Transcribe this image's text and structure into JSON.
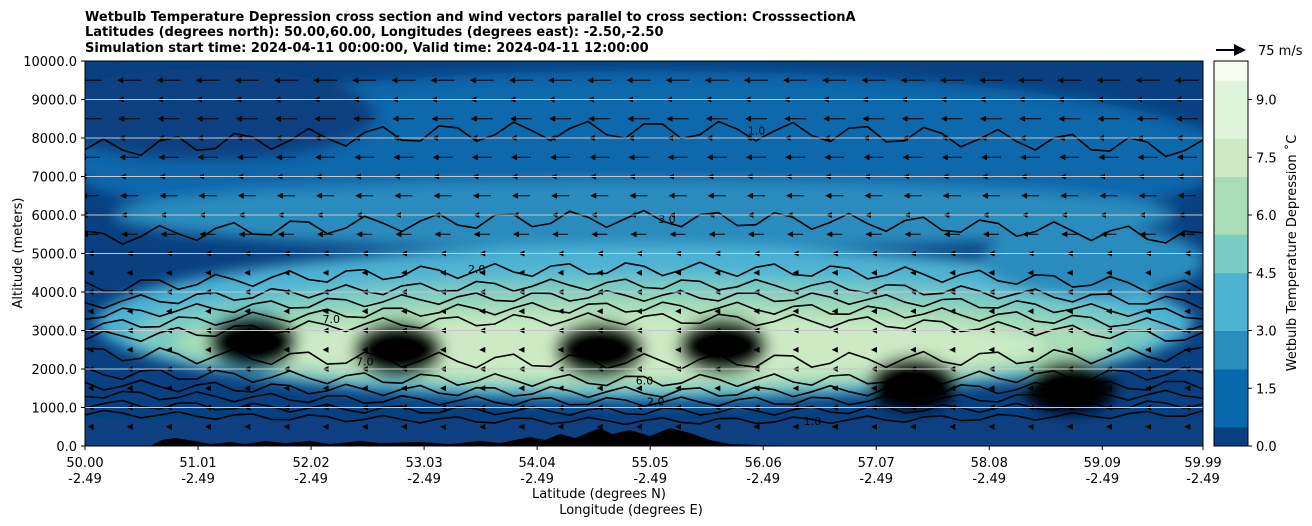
{
  "chart_data": {
    "type": "heatmap",
    "title_lines": [
      "Wetbulb Temperature Depression cross section and wind vectors parallel to cross section: CrosssectionA",
      "Latitudes (degrees north): 50.00,60.00, Longitudes (degrees east): -2.50,-2.50",
      "Simulation start time: 2024-04-11 00:00:00, Valid time: 2024-04-11 12:00:00"
    ],
    "ylabel": "Altitude (meters)",
    "xlabel_lines": [
      "Latitude (degrees N)",
      "Longitude (degrees E)"
    ],
    "ylim": [
      0,
      10000
    ],
    "xlim": [
      50.0,
      59.99
    ],
    "y_ticks": [
      0,
      1000,
      2000,
      3000,
      4000,
      5000,
      6000,
      7000,
      8000,
      9000,
      10000
    ],
    "y_tick_labels": [
      "0.0",
      "1000.0",
      "2000.0",
      "3000.0",
      "4000.0",
      "5000.0",
      "6000.0",
      "7000.0",
      "8000.0",
      "9000.0",
      "10000.0"
    ],
    "x_ticks": [
      {
        "lat": "50.00",
        "lon": "-2.49"
      },
      {
        "lat": "51.01",
        "lon": "-2.49"
      },
      {
        "lat": "52.02",
        "lon": "-2.49"
      },
      {
        "lat": "53.03",
        "lon": "-2.49"
      },
      {
        "lat": "54.04",
        "lon": "-2.49"
      },
      {
        "lat": "55.05",
        "lon": "-2.49"
      },
      {
        "lat": "56.06",
        "lon": "-2.49"
      },
      {
        "lat": "57.07",
        "lon": "-2.49"
      },
      {
        "lat": "58.08",
        "lon": "-2.49"
      },
      {
        "lat": "59.09",
        "lon": "-2.49"
      },
      {
        "lat": "59.99",
        "lon": "-2.49"
      }
    ],
    "grid": "horizontal",
    "colorbar": {
      "label": "Wetbulb Temperature Depression ˚C",
      "range": [
        0,
        10
      ],
      "levels": 20,
      "ticks": [
        "0.0",
        "1.5",
        "3.0",
        "4.5",
        "6.0",
        "7.5",
        "9.0"
      ],
      "tick_values": [
        0,
        1.5,
        3.0,
        4.5,
        6.0,
        7.5,
        9.0
      ],
      "colormap": "GnBu_r",
      "colors": [
        "#084081",
        "#0868ac",
        "#2b8cbe",
        "#4eb3d3",
        "#7bccc4",
        "#a8ddb5",
        "#ccebc5",
        "#e0f3db",
        "#f7fcf0"
      ]
    },
    "quiver_key": {
      "label": "75 m/s"
    },
    "contour_labels": [
      "1.0",
      "2.0",
      "3.0",
      "4.0",
      "5.0",
      "6.0",
      "7.0",
      "8.0"
    ],
    "field_peaks": [
      {
        "lat": 51.5,
        "alt": 2700,
        "value": 8.2
      },
      {
        "lat": 52.8,
        "alt": 2500,
        "value": 8.3
      },
      {
        "lat": 54.6,
        "alt": 2500,
        "value": 8.6
      },
      {
        "lat": 55.7,
        "alt": 2600,
        "value": 8.4
      },
      {
        "lat": 57.4,
        "alt": 1600,
        "value": 8.2
      },
      {
        "lat": 58.8,
        "alt": 1500,
        "value": 6.4
      }
    ]
  }
}
